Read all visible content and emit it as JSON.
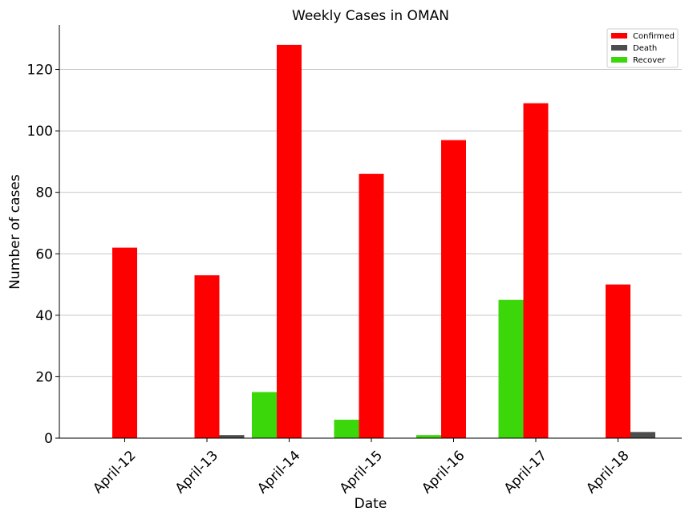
{
  "chart_data": {
    "type": "bar",
    "title": "Weekly Cases in OMAN",
    "xlabel": "Date",
    "ylabel": "Number of cases",
    "categories": [
      "April-12",
      "April-13",
      "April-14",
      "April-15",
      "April-16",
      "April-17",
      "April-18"
    ],
    "series": [
      {
        "name": "Recover",
        "color": "#3cd70a",
        "values": [
          0,
          0,
          15,
          6,
          1,
          45,
          0
        ]
      },
      {
        "name": "Confirmed",
        "color": "#ff0000",
        "values": [
          62,
          53,
          128,
          86,
          97,
          109,
          50
        ]
      },
      {
        "name": "Death",
        "color": "#4d4d4d",
        "values": [
          0,
          1,
          0,
          0,
          0,
          0,
          2
        ]
      }
    ],
    "legend_order": [
      "Confirmed",
      "Death",
      "Recover"
    ],
    "ylim": [
      0,
      134.5
    ],
    "yticks": [
      0,
      20,
      40,
      60,
      80,
      100,
      120
    ],
    "grid": "y",
    "legend_position": "top-right"
  }
}
